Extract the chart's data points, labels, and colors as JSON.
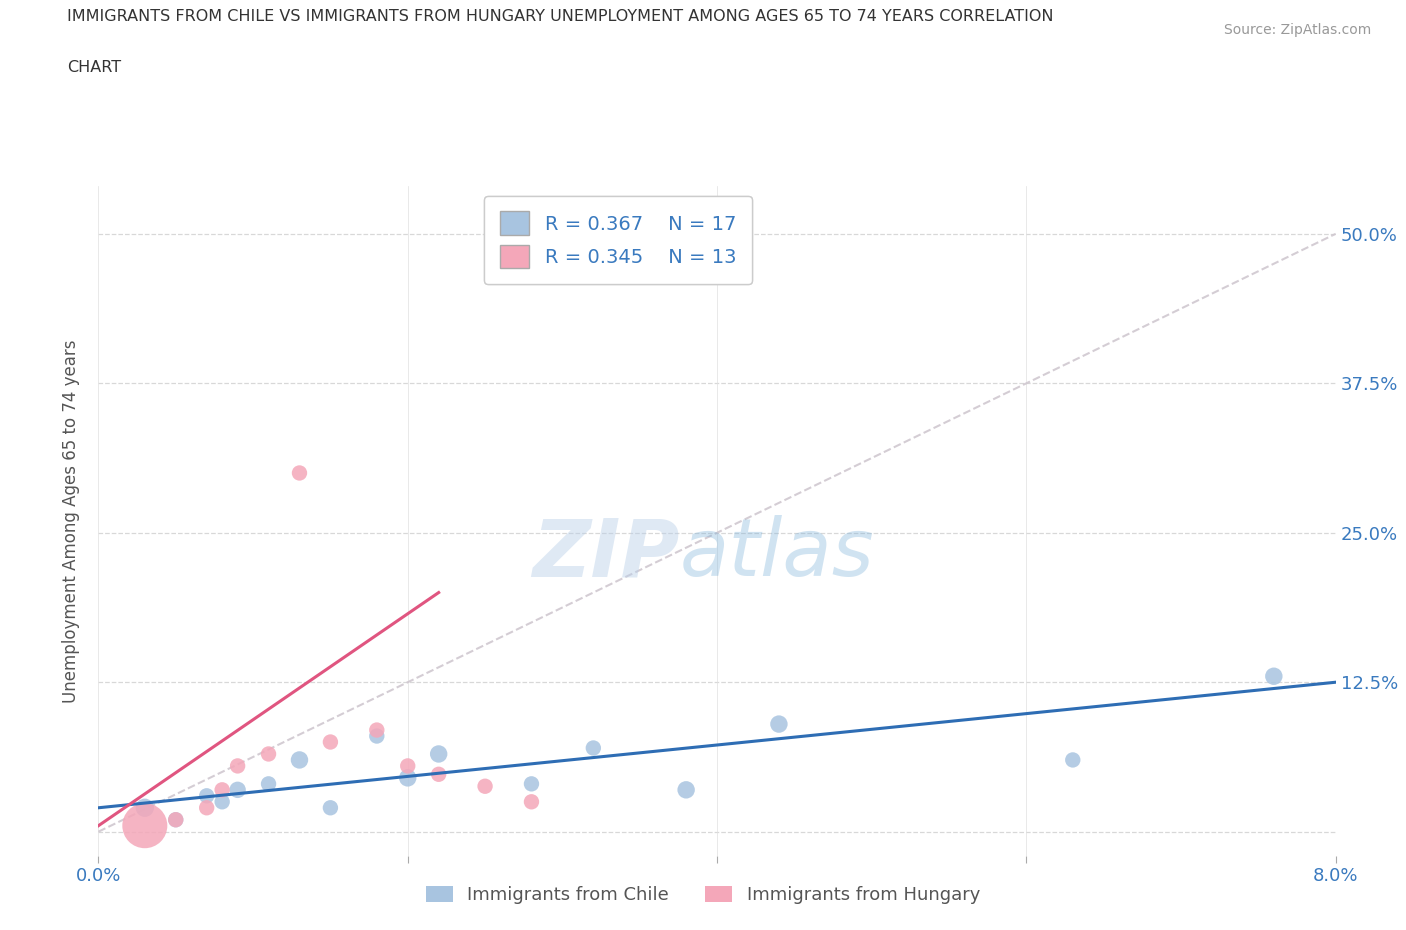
{
  "title_line1": "IMMIGRANTS FROM CHILE VS IMMIGRANTS FROM HUNGARY UNEMPLOYMENT AMONG AGES 65 TO 74 YEARS CORRELATION",
  "title_line2": "CHART",
  "source_text": "Source: ZipAtlas.com",
  "ylabel": "Unemployment Among Ages 65 to 74 years",
  "xlim": [
    0.0,
    0.08
  ],
  "ylim": [
    -0.02,
    0.54
  ],
  "yticks": [
    0.0,
    0.125,
    0.25,
    0.375,
    0.5
  ],
  "ytick_labels": [
    "",
    "12.5%",
    "25.0%",
    "37.5%",
    "50.0%"
  ],
  "xticks": [
    0.0,
    0.02,
    0.04,
    0.06,
    0.08
  ],
  "xtick_labels": [
    "0.0%",
    "",
    "",
    "",
    "8.0%"
  ],
  "chile_R": 0.367,
  "chile_N": 17,
  "hungary_R": 0.345,
  "hungary_N": 13,
  "chile_color": "#a8c4e0",
  "hungary_color": "#f4a7b9",
  "chile_line_color": "#2e6db4",
  "hungary_line_color": "#e05580",
  "trend_line_color": "#d0c8d0",
  "background_color": "#ffffff",
  "watermark_zip": "ZIP",
  "watermark_atlas": "atlas",
  "chile_x": [
    0.003,
    0.005,
    0.007,
    0.008,
    0.009,
    0.011,
    0.013,
    0.015,
    0.018,
    0.02,
    0.022,
    0.028,
    0.032,
    0.038,
    0.044,
    0.063,
    0.076
  ],
  "chile_y": [
    0.02,
    0.01,
    0.03,
    0.025,
    0.035,
    0.04,
    0.06,
    0.02,
    0.08,
    0.045,
    0.065,
    0.04,
    0.07,
    0.035,
    0.09,
    0.06,
    0.13
  ],
  "chile_size": [
    50,
    35,
    35,
    35,
    40,
    35,
    45,
    35,
    35,
    45,
    45,
    35,
    35,
    45,
    45,
    35,
    45
  ],
  "hungary_x": [
    0.003,
    0.005,
    0.007,
    0.008,
    0.009,
    0.011,
    0.013,
    0.015,
    0.018,
    0.02,
    0.022,
    0.025,
    0.028
  ],
  "hungary_y": [
    0.005,
    0.01,
    0.02,
    0.035,
    0.055,
    0.065,
    0.3,
    0.075,
    0.085,
    0.055,
    0.048,
    0.038,
    0.025
  ],
  "hungary_size": [
    300,
    35,
    35,
    35,
    35,
    35,
    35,
    35,
    35,
    35,
    35,
    35,
    35
  ],
  "legend_chile_label": "Immigrants from Chile",
  "legend_hungary_label": "Immigrants from Hungary"
}
